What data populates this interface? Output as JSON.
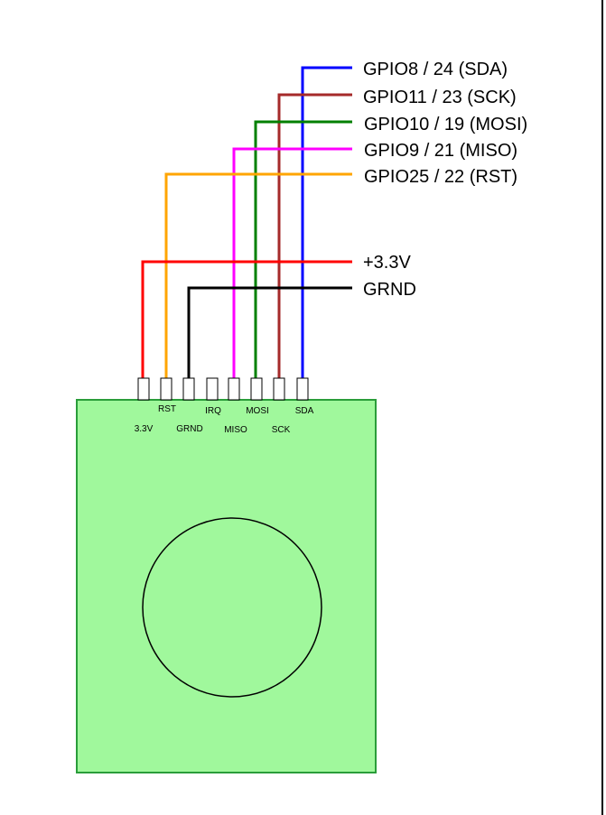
{
  "diagram": {
    "board_color": "#a0f89c",
    "board_border_color": "#2a9d3a",
    "pins": [
      {
        "id": "pin-3v3",
        "label": "3.3V"
      },
      {
        "id": "pin-rst",
        "label": "RST"
      },
      {
        "id": "pin-grnd",
        "label": "GRND"
      },
      {
        "id": "pin-irq",
        "label": "IRQ"
      },
      {
        "id": "pin-miso",
        "label": "MISO"
      },
      {
        "id": "pin-mosi",
        "label": "MOSI"
      },
      {
        "id": "pin-sck",
        "label": "SCK"
      },
      {
        "id": "pin-sda",
        "label": "SDA"
      }
    ],
    "wires": [
      {
        "id": "sda",
        "label": "GPIO8 / 24 (SDA)",
        "color": "#0000ff"
      },
      {
        "id": "sck",
        "label": "GPIO11 / 23 (SCK)",
        "color": "#a52a2a"
      },
      {
        "id": "mosi",
        "label": "GPIO10 / 19 (MOSI)",
        "color": "#008000"
      },
      {
        "id": "miso",
        "label": "GPIO9 / 21 (MISO)",
        "color": "#ff00ff"
      },
      {
        "id": "rst",
        "label": "GPIO25 / 22 (RST)",
        "color": "#ffa500"
      },
      {
        "id": "vcc",
        "label": "+3.3V",
        "color": "#ff0000"
      },
      {
        "id": "gnd",
        "label": "GRND",
        "color": "#000000"
      }
    ]
  }
}
